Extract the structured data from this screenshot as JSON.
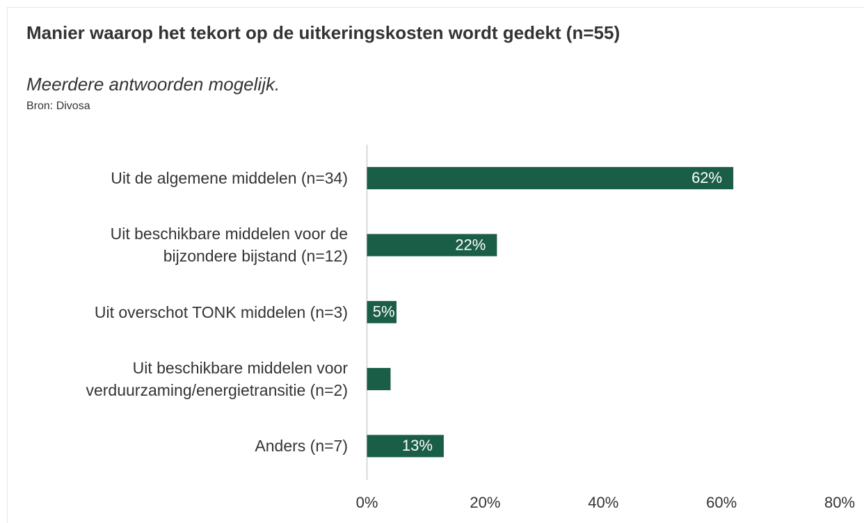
{
  "chart_data": {
    "type": "hbar",
    "title": "Manier waarop het tekort op de uitkeringskosten wordt gedekt (n=55)",
    "subtitle": "Meerdere antwoorden mogelijk.",
    "source": "Bron: Divosa",
    "categories": [
      "Uit de algemene middelen (n=34)",
      "Uit beschikbare middelen voor de\nbijzondere bijstand (n=12)",
      "Uit overschot TONK middelen (n=3)",
      "Uit beschikbare middelen voor\nverduurzaming/energietransitie (n=2)",
      "Anders (n=7)"
    ],
    "values": [
      62,
      22,
      5,
      4,
      13
    ],
    "value_labels": [
      "62%",
      "22%",
      "5%",
      null,
      "13%"
    ],
    "color": "#1b5e48",
    "xlim": [
      0,
      80
    ],
    "xticks": [
      {
        "value": 0,
        "label": "0%"
      },
      {
        "value": 20,
        "label": "20%"
      },
      {
        "value": 40,
        "label": "40%"
      },
      {
        "value": 60,
        "label": "60%"
      },
      {
        "value": 80,
        "label": "80%"
      }
    ]
  }
}
